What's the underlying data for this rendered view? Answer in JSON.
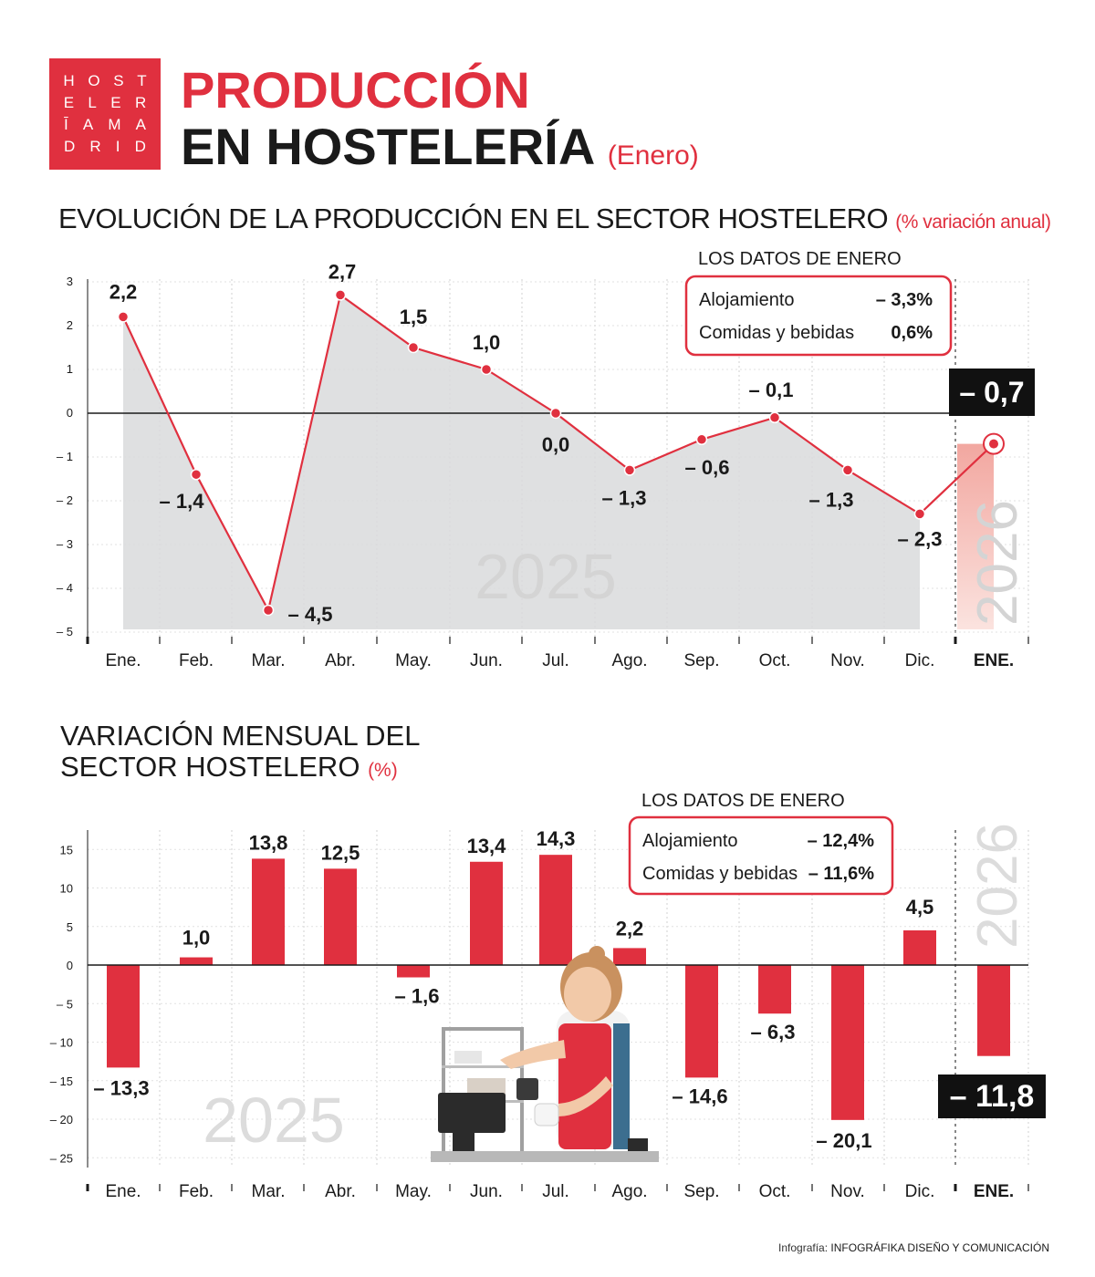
{
  "logo": {
    "rows": [
      [
        "H",
        "O",
        "S",
        "T"
      ],
      [
        "E",
        "L",
        "E",
        "R"
      ],
      [
        "Ī",
        "A",
        "M",
        "A"
      ],
      [
        "D",
        "R",
        "I",
        "D"
      ]
    ]
  },
  "header": {
    "title_line1": "PRODUCCIÓN",
    "title_line2": "EN HOSTELERÍA",
    "title_sub": "(Enero)"
  },
  "section1": {
    "title": "EVOLUCIÓN DE LA PRODUCCIÓN EN EL SECTOR HOSTELERO",
    "unit": "(% variación anual)"
  },
  "section2": {
    "title_line1": "VARIACIÓN MENSUAL DEL",
    "title_line2": "SECTOR HOSTELERO",
    "unit": "(%)"
  },
  "credit": {
    "prefix": "Infografía:",
    "name": "INFOGRÁFIKA DISEÑO Y COMUNICACIÓN"
  },
  "colors": {
    "accent": "#e0303f",
    "dark": "#1a1a1a",
    "area": "#d9dadc",
    "watermark": "#dcdcdc"
  },
  "chart_data": [
    {
      "type": "line",
      "title": "EVOLUCIÓN DE LA PRODUCCIÓN EN EL SECTOR HOSTELERO",
      "unit": "% variación anual",
      "categories": [
        "Ene.",
        "Feb.",
        "Mar.",
        "Abr.",
        "May.",
        "Jun.",
        "Jul.",
        "Ago.",
        "Sep.",
        "Oct.",
        "Nov.",
        "Dic.",
        "ENE."
      ],
      "values": [
        2.2,
        -1.4,
        -4.5,
        2.7,
        1.5,
        1.0,
        0.0,
        -1.3,
        -0.6,
        -0.1,
        -1.3,
        -2.3,
        -0.7
      ],
      "labels": [
        "2,2",
        "– 1,4",
        "– 4,5",
        "2,7",
        "1,5",
        "1,0",
        "0,0",
        "– 1,3",
        "– 0,6",
        "– 0,1",
        "– 1,3",
        "– 2,3",
        "– 0,7"
      ],
      "yticks": [
        3,
        2,
        1,
        0,
        -1,
        -2,
        -3,
        -4,
        -5
      ],
      "ytick_labels": [
        "3",
        "2",
        "1",
        "0",
        "– 1",
        "– 2",
        "– 3",
        "– 4",
        "– 5"
      ],
      "ylim": [
        -5,
        3
      ],
      "year_labels": [
        "2025",
        "2026"
      ],
      "highlight_index": 12,
      "annotation": {
        "title": "LOS DATOS DE ENERO",
        "rows": [
          {
            "label": "Alojamiento",
            "value": "– 3,3%"
          },
          {
            "label": "Comidas y bebidas",
            "value": "0,6%"
          }
        ]
      }
    },
    {
      "type": "bar",
      "title": "VARIACIÓN MENSUAL DEL SECTOR HOSTELERO",
      "unit": "%",
      "categories": [
        "Ene.",
        "Feb.",
        "Mar.",
        "Abr.",
        "May.",
        "Jun.",
        "Jul.",
        "Ago.",
        "Sep.",
        "Oct.",
        "Nov.",
        "Dic.",
        "ENE."
      ],
      "values": [
        -13.3,
        1.0,
        13.8,
        12.5,
        -1.6,
        13.4,
        14.3,
        2.2,
        -14.6,
        -6.3,
        -20.1,
        4.5,
        -11.8
      ],
      "labels": [
        "– 13,3",
        "1,0",
        "13,8",
        "12,5",
        "– 1,6",
        "13,4",
        "14,3",
        "2,2",
        "– 14,6",
        "– 6,3",
        "– 20,1",
        "4,5",
        "– 11,8"
      ],
      "yticks": [
        15,
        10,
        5,
        0,
        -5,
        -10,
        -15,
        -20,
        -25
      ],
      "ytick_labels": [
        "15",
        "10",
        "5",
        "0",
        "– 5",
        "– 10",
        "– 15",
        "– 20",
        "– 25"
      ],
      "ylim": [
        -26,
        17
      ],
      "year_labels": [
        "2025",
        "2026"
      ],
      "highlight_index": 12,
      "annotation": {
        "title": "LOS DATOS DE ENERO",
        "rows": [
          {
            "label": "Alojamiento",
            "value": "– 12,4%"
          },
          {
            "label": "Comidas y bebidas",
            "value": "– 11,6%"
          }
        ]
      }
    }
  ]
}
